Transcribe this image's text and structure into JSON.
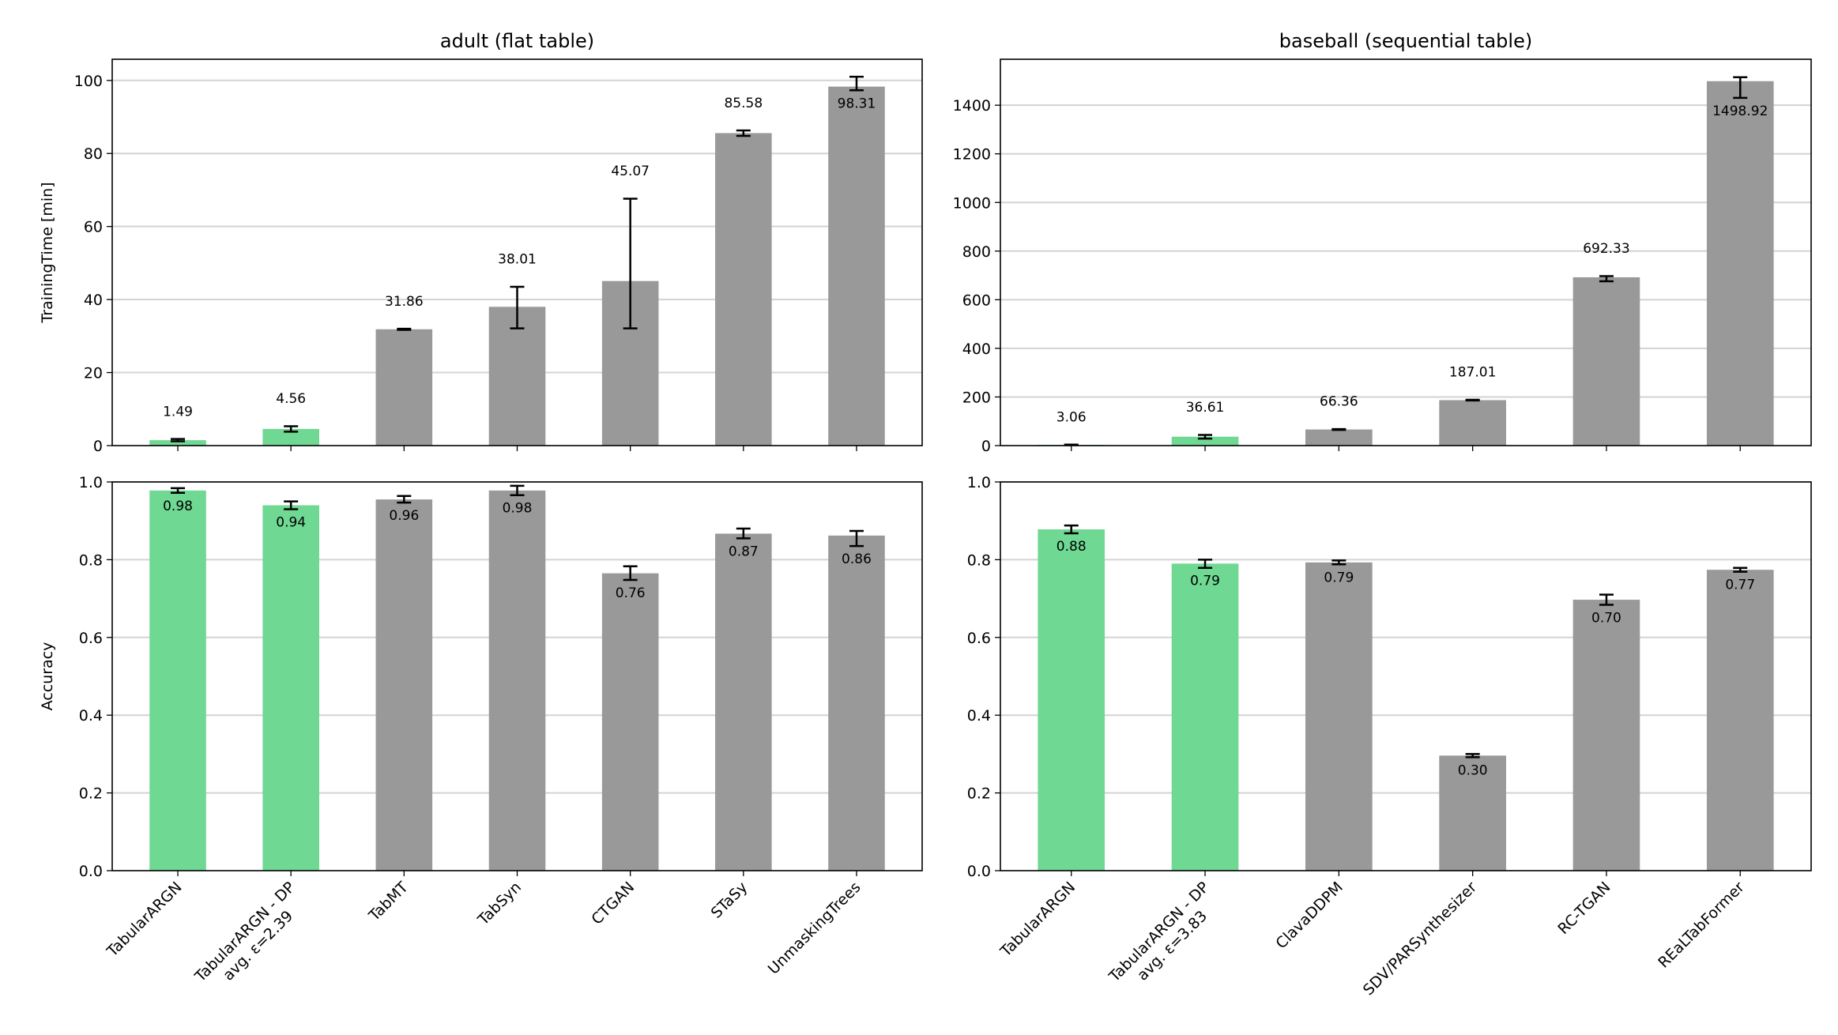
{
  "colors": {
    "highlight": "#6fd893",
    "other": "#999999",
    "grid": "#d3d3d3"
  },
  "chart_data": [
    {
      "type": "bar",
      "panel": "top-left",
      "title": "adult (flat table)",
      "ylabel": "TrainingTime [min]",
      "ylim": [
        0,
        105.8
      ],
      "yticks": [
        0,
        20,
        40,
        60,
        80,
        100
      ],
      "ytick_labels": [
        "0",
        "20",
        "40",
        "60",
        "80",
        "100"
      ],
      "grid": "y",
      "categories": [
        "TabularARGN",
        "TabularARGN - DP\navg. ε=2.39",
        "TabMT",
        "TabSyn",
        "CTGAN",
        "STaSy",
        "UnmaskingTrees"
      ],
      "show_xticklabels": false,
      "highlight": [
        true,
        true,
        false,
        false,
        false,
        false,
        false
      ],
      "values": [
        1.49,
        4.56,
        31.86,
        38.01,
        45.07,
        85.58,
        98.31
      ],
      "labels": [
        "1.49",
        "4.56",
        "31.86",
        "38.01",
        "45.07",
        "85.58",
        "98.31"
      ],
      "err_low": [
        1.2,
        3.8,
        31.7,
        32.1,
        32.1,
        84.8,
        97.3
      ],
      "err_high": [
        1.8,
        5.3,
        32.0,
        43.5,
        67.6,
        86.3,
        101.0
      ]
    },
    {
      "type": "bar",
      "panel": "top-right",
      "title": "baseball (sequential table)",
      "ylabel": "",
      "ylim": [
        0,
        1589
      ],
      "yticks": [
        0,
        200,
        400,
        600,
        800,
        1000,
        1200,
        1400
      ],
      "ytick_labels": [
        "0",
        "200",
        "400",
        "600",
        "800",
        "1000",
        "1200",
        "1400"
      ],
      "grid": "y",
      "categories": [
        "TabularARGN",
        "TabularARGN - DP\navg. ε=3.83",
        "ClavaDDPM",
        "SDV/PARSynthesizer",
        "RC-TGAN",
        "REaLTabFormer"
      ],
      "show_xticklabels": false,
      "highlight": [
        true,
        true,
        false,
        false,
        false,
        false
      ],
      "values": [
        3.06,
        36.61,
        66.36,
        187.01,
        692.33,
        1498.92
      ],
      "labels": [
        "3.06",
        "36.61",
        "66.36",
        "187.01",
        "692.33",
        "1498.92"
      ],
      "err_low": [
        2.0,
        29.0,
        64.5,
        185.5,
        676.0,
        1430.0
      ],
      "err_high": [
        4.0,
        44.0,
        68.0,
        188.5,
        697.0,
        1515.0
      ]
    },
    {
      "type": "bar",
      "panel": "bottom-left",
      "title": "",
      "ylabel": "Accuracy",
      "ylim": [
        0,
        1.0
      ],
      "yticks": [
        0,
        0.2,
        0.4,
        0.6,
        0.8,
        1.0
      ],
      "ytick_labels": [
        "0.0",
        "0.2",
        "0.4",
        "0.6",
        "0.8",
        "1.0"
      ],
      "grid": "y",
      "categories": [
        "TabularARGN",
        "TabularARGN - DP\navg. ε=2.39",
        "TabMT",
        "TabSyn",
        "CTGAN",
        "STaSy",
        "UnmaskingTrees"
      ],
      "show_xticklabels": true,
      "highlight": [
        true,
        true,
        false,
        false,
        false,
        false,
        false
      ],
      "values": [
        0.978,
        0.94,
        0.955,
        0.978,
        0.765,
        0.867,
        0.862
      ],
      "labels": [
        "0.98",
        "0.94",
        "0.96",
        "0.98",
        "0.76",
        "0.87",
        "0.86"
      ],
      "err_low": [
        0.972,
        0.93,
        0.947,
        0.966,
        0.748,
        0.855,
        0.835
      ],
      "err_high": [
        0.984,
        0.95,
        0.964,
        0.99,
        0.783,
        0.88,
        0.874
      ]
    },
    {
      "type": "bar",
      "panel": "bottom-right",
      "title": "",
      "ylabel": "",
      "ylim": [
        0,
        1.0
      ],
      "yticks": [
        0,
        0.2,
        0.4,
        0.6,
        0.8,
        1.0
      ],
      "ytick_labels": [
        "0.0",
        "0.2",
        "0.4",
        "0.6",
        "0.8",
        "1.0"
      ],
      "grid": "y",
      "categories": [
        "TabularARGN",
        "TabularARGN - DP\navg. ε=3.83",
        "ClavaDDPM",
        "SDV/PARSynthesizer",
        "RC-TGAN",
        "REaLTabFormer"
      ],
      "show_xticklabels": true,
      "highlight": [
        true,
        true,
        false,
        false,
        false,
        false
      ],
      "values": [
        0.878,
        0.79,
        0.793,
        0.296,
        0.697,
        0.774
      ],
      "labels": [
        "0.88",
        "0.79",
        "0.79",
        "0.30",
        "0.70",
        "0.77"
      ],
      "err_low": [
        0.868,
        0.779,
        0.788,
        0.292,
        0.684,
        0.769
      ],
      "err_high": [
        0.888,
        0.8,
        0.798,
        0.3,
        0.71,
        0.779
      ]
    }
  ]
}
